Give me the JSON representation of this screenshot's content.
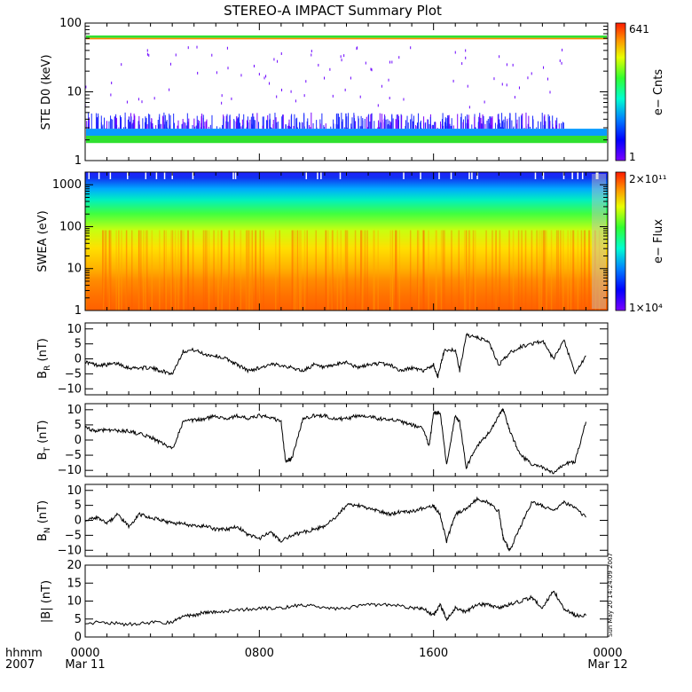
{
  "title": "STEREO-A IMPACT Summary Plot",
  "timestamp_note": "Sun May 20 14:24:09 2007",
  "x_axis": {
    "prefix_top": "hhmm",
    "prefix_bottom": "2007",
    "ticks": [
      {
        "t": 0,
        "label": "0000",
        "date": "Mar 11"
      },
      {
        "t": 8,
        "label": "0800",
        "date": ""
      },
      {
        "t": 16,
        "label": "1600",
        "date": ""
      },
      {
        "t": 24,
        "label": "0000",
        "date": "Mar 12"
      }
    ],
    "range_hours": [
      0,
      24
    ]
  },
  "chart_data": [
    {
      "type": "heatmap",
      "id": "ste",
      "ylabel": "STE D0 (keV)",
      "yscale": "log",
      "ylim": [
        1,
        100
      ],
      "yticks": [
        1,
        10,
        100
      ],
      "ytick_labels": [
        "1",
        "10",
        "100"
      ],
      "colorbar": {
        "label": "e− Cnts",
        "min_label": "1",
        "max_label": "641",
        "min": 1,
        "max": 641
      },
      "bands_keV": [
        {
          "from": 1.8,
          "to": 2.3,
          "level": "green"
        },
        {
          "from": 2.3,
          "to": 2.9,
          "level": "cyan-blue"
        },
        {
          "from": 2.9,
          "to": 5,
          "level": "sporadic-blue"
        },
        {
          "from": 58,
          "to": 61,
          "level": "orange"
        },
        {
          "from": 61,
          "to": 66,
          "level": "green"
        }
      ]
    },
    {
      "type": "heatmap",
      "id": "swea",
      "ylabel": "SWEA (eV)",
      "yscale": "log",
      "ylim": [
        1,
        2000
      ],
      "yticks": [
        1,
        10,
        100,
        1000
      ],
      "ytick_labels": [
        "1",
        "10",
        "100",
        "1000"
      ],
      "colorbar": {
        "label": "e− Flux",
        "min_label": "1×10⁴",
        "max_label": "2×10¹¹",
        "min": 10000,
        "max": 200000000000
      }
    },
    {
      "type": "line",
      "id": "br",
      "ylabel_main": "B",
      "ylabel_sub": "R",
      "ylabel_unit": " (nT)",
      "ylim": [
        -12,
        12
      ],
      "yticks": [
        -10,
        -5,
        0,
        5,
        10
      ],
      "ytick_labels": [
        "−10",
        "−5",
        "0",
        "5",
        "10"
      ],
      "series": [
        {
          "x": [
            0,
            0.5,
            1,
            1.5,
            2,
            2.5,
            3,
            3.5,
            4,
            4.5,
            5,
            5.5,
            6,
            6.5,
            7,
            7.5,
            8,
            8.5,
            9,
            9.5,
            10,
            10.5,
            11,
            11.5,
            12,
            12.5,
            13,
            13.5,
            14,
            14.5,
            15,
            15.5,
            16,
            16.2,
            16.5,
            17,
            17.2,
            17.5,
            18,
            18.5,
            19,
            19.5,
            20,
            20.5,
            21,
            21.5,
            22,
            22.5,
            23
          ],
          "y": [
            -1,
            -2,
            -2,
            -1.5,
            -3,
            -3,
            -3,
            -4,
            -5,
            2.5,
            3,
            1.5,
            1,
            0,
            -2,
            -4,
            -3,
            -2,
            -2,
            -3,
            -4,
            -2,
            -3,
            -2,
            -1,
            -3,
            -2,
            -1.5,
            -2,
            -4,
            -3,
            -4,
            -2,
            -6,
            3,
            3,
            -4,
            8,
            7,
            6,
            -2,
            2,
            4,
            5,
            6,
            0,
            6,
            -5,
            1
          ]
        }
      ]
    },
    {
      "type": "line",
      "id": "bt",
      "ylabel_main": "B",
      "ylabel_sub": "T",
      "ylabel_unit": " (nT)",
      "ylim": [
        -12,
        12
      ],
      "yticks": [
        -10,
        -5,
        0,
        5,
        10
      ],
      "ytick_labels": [
        "−10",
        "−5",
        "0",
        "5",
        "10"
      ],
      "series": [
        {
          "x": [
            0,
            0.5,
            1,
            1.5,
            2,
            2.5,
            3,
            3.5,
            4,
            4.5,
            5,
            5.5,
            6,
            6.5,
            7,
            7.5,
            8,
            8.5,
            9,
            9.2,
            9.5,
            10,
            10.5,
            11,
            11.5,
            12,
            12.5,
            13,
            13.5,
            14,
            14.5,
            15,
            15.5,
            15.8,
            16,
            16.3,
            16.6,
            17,
            17.2,
            17.5,
            18,
            18.5,
            19,
            19.2,
            19.5,
            20,
            20.5,
            21,
            21.5,
            22,
            22.5,
            23
          ],
          "y": [
            4,
            3,
            3.5,
            3,
            3,
            2,
            1,
            -1,
            -3,
            6,
            6.5,
            7,
            8,
            7,
            8,
            7,
            8,
            7.5,
            6,
            -7,
            -6,
            7,
            8,
            8,
            7,
            7,
            8,
            8,
            7,
            7,
            6,
            5,
            4,
            -2,
            9,
            9,
            -8,
            8,
            6,
            -9,
            -2,
            2,
            8,
            10,
            3,
            -5,
            -8,
            -9,
            -11,
            -8,
            -7,
            6
          ]
        }
      ]
    },
    {
      "type": "line",
      "id": "bn",
      "ylabel_main": "B",
      "ylabel_sub": "N",
      "ylabel_unit": " (nT)",
      "ylim": [
        -12,
        12
      ],
      "yticks": [
        -10,
        -5,
        0,
        5,
        10
      ],
      "ytick_labels": [
        "−10",
        "−5",
        "0",
        "5",
        "10"
      ],
      "series": [
        {
          "x": [
            0,
            0.5,
            1,
            1.5,
            2,
            2.5,
            3,
            3.5,
            4,
            4.5,
            5,
            5.5,
            6,
            6.5,
            7,
            7.5,
            8,
            8.5,
            9,
            9.5,
            10,
            10.5,
            11,
            11.5,
            12,
            12.5,
            13,
            13.5,
            14,
            14.5,
            15,
            15.5,
            16,
            16.3,
            16.6,
            17,
            17.5,
            18,
            18.5,
            19,
            19.2,
            19.5,
            20,
            20.5,
            21,
            21.5,
            22,
            22.5,
            23
          ],
          "y": [
            0,
            1,
            -1,
            2,
            -2,
            2,
            1,
            0,
            -1,
            -1,
            -2,
            -2,
            -3,
            -3,
            -2,
            -5,
            -6,
            -4,
            -7,
            -5,
            -4,
            -3,
            -2,
            1,
            5,
            5,
            4,
            3,
            2,
            3,
            3,
            4,
            5,
            2,
            -7,
            2,
            4,
            7,
            6,
            3,
            -6,
            -10,
            -2,
            6,
            5,
            3,
            6,
            4,
            1
          ]
        }
      ]
    },
    {
      "type": "line",
      "id": "bmag",
      "ylabel_main": "|B|",
      "ylabel_sub": "",
      "ylabel_unit": " (nT)",
      "ylim": [
        0,
        20
      ],
      "yticks": [
        0,
        5,
        10,
        15,
        20
      ],
      "ytick_labels": [
        "0",
        "5",
        "10",
        "15",
        "20"
      ],
      "series": [
        {
          "x": [
            0,
            1,
            2,
            3,
            4,
            4.5,
            5,
            5.5,
            6,
            7,
            8,
            9,
            10,
            11,
            12,
            13,
            14,
            15,
            15.5,
            16,
            16.3,
            16.6,
            17,
            17.5,
            18,
            18.5,
            19,
            19.5,
            20,
            20.5,
            21,
            21.5,
            22,
            22.5,
            23
          ],
          "y": [
            4,
            4,
            3.5,
            4,
            4,
            6,
            6,
            7,
            7,
            7.5,
            8,
            8,
            9,
            8,
            8,
            9,
            9,
            8,
            8,
            6,
            9,
            5,
            8,
            7,
            9,
            9,
            8,
            9,
            10,
            11,
            8,
            13,
            8,
            6,
            6
          ]
        }
      ]
    }
  ]
}
